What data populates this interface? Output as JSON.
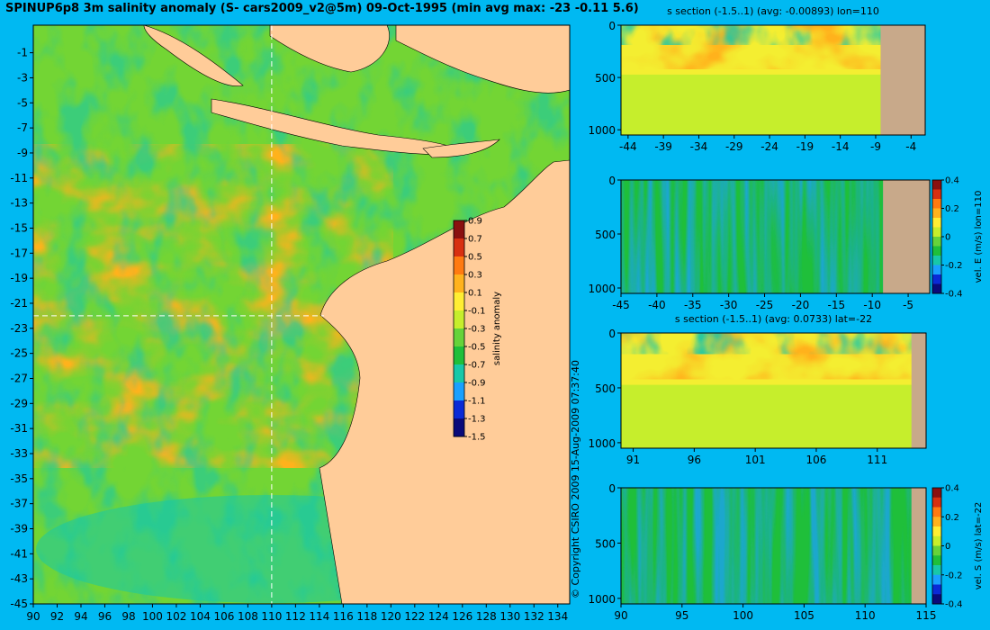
{
  "title": "SPINUP6p8 3m salinity anomaly (S- cars2009_v2@5m) 09-Oct-1995 (min avg max: -23 -0.11 5.6)",
  "copyright": "© Copyright CSIRO 2009  15-Aug-2009 07:37:40",
  "colors": {
    "background": "#00b9f2",
    "land_map": "#ffcc99",
    "land_section": "#c8a98a",
    "guide": "#ffffff",
    "palette": [
      "#0a0a7a",
      "#0a2ad6",
      "#1aa0ff",
      "#18c8a8",
      "#1fbf3a",
      "#66d33a",
      "#c6ee2c",
      "#ffee33",
      "#ffb21c",
      "#ff7a10",
      "#d83010",
      "#8a1010"
    ]
  },
  "chart_data": [
    {
      "id": "map",
      "type": "heatmap",
      "x_ticks": [
        90,
        92,
        94,
        96,
        98,
        100,
        102,
        104,
        106,
        108,
        110,
        112,
        114,
        116,
        118,
        120,
        122,
        124,
        126,
        128,
        130,
        132,
        134
      ],
      "y_ticks": [
        -1,
        -3,
        -5,
        -7,
        -9,
        -11,
        -13,
        -15,
        -17,
        -19,
        -21,
        -23,
        -25,
        -27,
        -29,
        -31,
        -33,
        -35,
        -37,
        -39,
        -41,
        -43,
        -45
      ],
      "xlim": [
        90,
        135
      ],
      "ylim": [
        -45,
        1.2
      ],
      "guide_lon": 110,
      "guide_lat": -22,
      "colorbar": {
        "label": "salinity anomaly",
        "ticks": [
          "0.9",
          "0.7",
          "0.5",
          "0.3",
          "0.1",
          "-0.1",
          "-0.3",
          "-0.5",
          "-0.7",
          "-0.9",
          "-1.1",
          "-1.3",
          "-1.5"
        ],
        "range": [
          -1.5,
          1.0
        ]
      }
    },
    {
      "id": "section-s-lon",
      "type": "heatmap",
      "title": "s section (-1.5..1) (avg: -0.00893) lon=110",
      "x_ticks": [
        "-44",
        "-39",
        "-34",
        "-29",
        "-24",
        "-19",
        "-14",
        "-9",
        "-4"
      ],
      "y_ticks": [
        "0",
        "500",
        "1000"
      ],
      "land_from": -8.3
    },
    {
      "id": "section-ve-lon",
      "type": "heatmap",
      "x_ticks": [
        "-45",
        "-40",
        "-35",
        "-30",
        "-25",
        "-20",
        "-15",
        "-10",
        "-5"
      ],
      "y_ticks": [
        "0",
        "500",
        "1000"
      ],
      "land_from": -8.5,
      "colorbar": {
        "label": "vel. E (m/s) lon=110",
        "ticks": [
          "0.4",
          "0.2",
          "0",
          "-0.2",
          "-0.4"
        ]
      }
    },
    {
      "id": "section-s-lat",
      "type": "heatmap",
      "title": "s section (-1.5..1) (avg: 0.0733) lat=-22",
      "x_ticks": [
        "91",
        "96",
        "101",
        "106",
        "111"
      ],
      "y_ticks": [
        "0",
        "500",
        "1000"
      ],
      "land_from": 113.8
    },
    {
      "id": "section-vs-lat",
      "type": "heatmap",
      "x_ticks": [
        "90",
        "95",
        "100",
        "105",
        "110",
        "115"
      ],
      "y_ticks": [
        "0",
        "500",
        "1000"
      ],
      "land_from": 113.8,
      "colorbar": {
        "label": "vel. S (m/s) lat=-22",
        "ticks": [
          "0.4",
          "0.2",
          "0",
          "-0.2",
          "-0.4"
        ]
      }
    }
  ]
}
